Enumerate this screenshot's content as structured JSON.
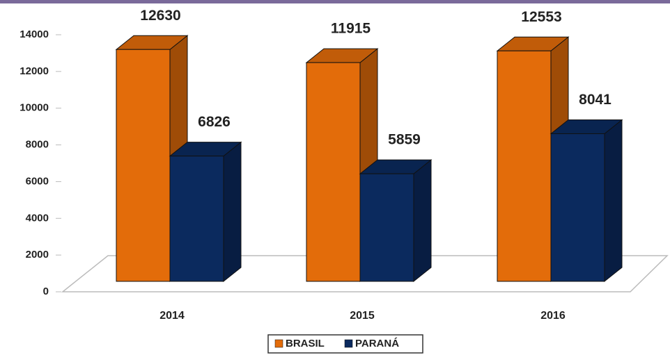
{
  "chart_data": {
    "type": "bar3d",
    "categories": [
      "2014",
      "2015",
      "2016"
    ],
    "series": [
      {
        "name": "BRASIL",
        "color": "#e36c0a",
        "values": [
          12630,
          11915,
          12553
        ]
      },
      {
        "name": "PARANÁ",
        "color": "#0b2a5e",
        "values": [
          6826,
          5859,
          8041
        ]
      }
    ],
    "ylim": [
      0,
      14000
    ],
    "yticks": [
      0,
      2000,
      4000,
      6000,
      8000,
      10000,
      12000,
      14000
    ],
    "legend": "bottom"
  }
}
